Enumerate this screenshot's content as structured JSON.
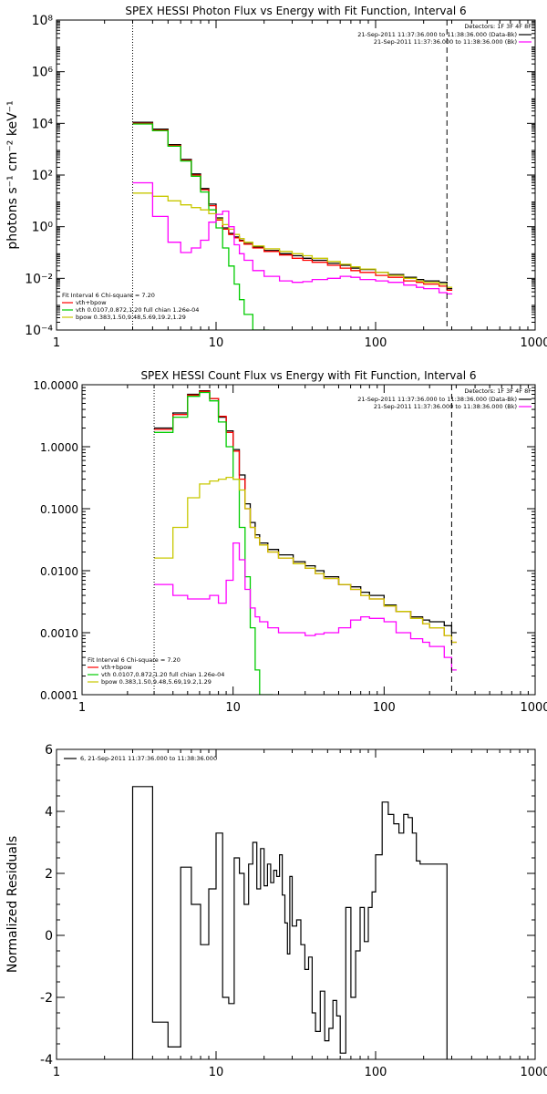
{
  "chart_data": [
    {
      "type": "line",
      "title": "SPEX HESSI Photon Flux vs Energy with Fit Function, Interval 6",
      "ylabel": "photons s⁻¹ cm⁻² keV⁻¹",
      "xlabel": "",
      "xscale": "log",
      "yscale": "log",
      "xlim": [
        1,
        1000
      ],
      "ylim": [
        0.0001,
        100000000
      ],
      "xticks": [
        1,
        10,
        100,
        1000
      ],
      "xtick_labels": [
        "1",
        "10",
        "100",
        "1000"
      ],
      "yticks": [
        0.0001,
        0.01,
        1,
        100,
        10000,
        1000000,
        100000000
      ],
      "ytick_labels": [
        "10⁻⁴",
        "10⁻²",
        "10⁰",
        "10²",
        "10⁴",
        "10⁶",
        "10⁸"
      ],
      "vlines": [
        {
          "x": 3,
          "style": "dotted"
        },
        {
          "x": 280,
          "style": "dashed"
        }
      ],
      "info_lines": [
        "Detectors: 1F 3F 4F 8F",
        "21-Sep-2011 11:37:36.000 to 11:38:36.000 (Data-Bk)",
        "21-Sep-2011 11:37:36.000 to 11:38:36.000 (Bk)"
      ],
      "info_legend_colors": [
        "#000000",
        "#ff00ff"
      ],
      "fit_legend": [
        "Fit Interval 6   Chi-square = 7.20",
        "vth+bpow",
        "vth 0.0107,0.872,1.20  full chian 1.26e-04",
        "bpow 0.383,1.50,9.48,5.69,19.2,1.29"
      ],
      "fit_legend_colors": [
        "#ff0000",
        "#00cc00",
        "#c8c800"
      ],
      "series": [
        {
          "color": "#000000",
          "x": [
            3,
            4,
            5,
            6,
            7,
            8,
            9,
            10,
            11,
            12,
            13,
            14,
            15,
            17,
            20,
            25,
            30,
            35,
            40,
            50,
            60,
            70,
            80,
            100,
            120,
            150,
            180,
            200,
            250,
            280
          ],
          "values": [
            11000,
            6000,
            1500,
            400,
            110,
            30,
            7.5,
            2.2,
            0.9,
            0.55,
            0.4,
            0.3,
            0.22,
            0.16,
            0.12,
            0.09,
            0.075,
            0.06,
            0.05,
            0.038,
            0.032,
            0.025,
            0.022,
            0.017,
            0.014,
            0.011,
            0.009,
            0.008,
            0.007,
            0.004
          ]
        },
        {
          "color": "#ff0000",
          "x": [
            3,
            4,
            5,
            6,
            7,
            8,
            9,
            10,
            11,
            12,
            13,
            14,
            15,
            17,
            20,
            25,
            30,
            35,
            40,
            50,
            60,
            70,
            80,
            100,
            120,
            150,
            180,
            200,
            250,
            280
          ],
          "values": [
            10000,
            5500,
            1400,
            370,
            100,
            27,
            6.5,
            1.8,
            0.8,
            0.5,
            0.37,
            0.28,
            0.21,
            0.15,
            0.11,
            0.08,
            0.06,
            0.05,
            0.042,
            0.032,
            0.025,
            0.02,
            0.017,
            0.013,
            0.011,
            0.008,
            0.007,
            0.006,
            0.005,
            0.0035
          ]
        },
        {
          "color": "#00cc00",
          "x": [
            3,
            4,
            5,
            6,
            7,
            8,
            9,
            10,
            11,
            12,
            13,
            14,
            15,
            17,
            20
          ],
          "values": [
            9500,
            5200,
            1300,
            350,
            90,
            22,
            4.5,
            0.9,
            0.15,
            0.03,
            0.006,
            0.0015,
            0.0004,
            0.0001,
            0.0001
          ]
        },
        {
          "color": "#c8c800",
          "x": [
            3,
            4,
            5,
            6,
            7,
            8,
            9,
            10,
            11,
            12,
            13,
            14,
            15,
            17,
            20,
            25,
            30,
            35,
            40,
            50,
            60,
            70,
            80,
            100,
            120,
            150,
            180,
            200,
            250,
            280
          ],
          "values": [
            20,
            15,
            10,
            7,
            5.5,
            4.5,
            3.2,
            2,
            1.2,
            0.8,
            0.5,
            0.35,
            0.25,
            0.18,
            0.14,
            0.11,
            0.09,
            0.075,
            0.06,
            0.045,
            0.035,
            0.028,
            0.023,
            0.017,
            0.013,
            0.01,
            0.008,
            0.007,
            0.006,
            0.0045
          ]
        },
        {
          "color": "#ff00ff",
          "x": [
            3,
            4,
            5,
            6,
            7,
            8,
            9,
            10,
            11,
            12,
            13,
            14,
            15,
            17,
            20,
            25,
            30,
            35,
            40,
            50,
            60,
            70,
            80,
            100,
            120,
            150,
            180,
            200,
            250,
            280
          ],
          "values": [
            50,
            2.5,
            0.25,
            0.1,
            0.15,
            0.3,
            1.5,
            3,
            4,
            1,
            0.2,
            0.09,
            0.05,
            0.02,
            0.012,
            0.008,
            0.007,
            0.0075,
            0.009,
            0.01,
            0.012,
            0.011,
            0.009,
            0.008,
            0.007,
            0.0055,
            0.0045,
            0.004,
            0.0028,
            0.0025
          ]
        }
      ]
    },
    {
      "type": "line",
      "title": "SPEX HESSI Count Flux vs Energy with Fit Function, Interval 6",
      "ylabel": "",
      "xlabel": "",
      "xscale": "log",
      "yscale": "log",
      "xlim": [
        1,
        1000
      ],
      "ylim": [
        0.0001,
        10
      ],
      "xticks": [
        1,
        10,
        100,
        1000
      ],
      "xtick_labels": [
        "1",
        "10",
        "100",
        "1000"
      ],
      "yticks": [
        0.0001,
        0.001,
        0.01,
        0.1,
        1,
        10
      ],
      "ytick_labels": [
        "0.0001",
        "0.0010",
        "0.0100",
        "0.1000",
        "1.0000",
        "10.0000"
      ],
      "vlines": [
        {
          "x": 3,
          "style": "dotted"
        },
        {
          "x": 280,
          "style": "dashed"
        }
      ],
      "info_lines": [
        "Detectors: 1F 3F 4F 8F",
        "21-Sep-2011 11:37:36.000 to 11:38:36.000 (Data-Bk)",
        "21-Sep-2011 11:37:36.000 to 11:38:36.000 (Bk)"
      ],
      "info_legend_colors": [
        "#000000",
        "#ff00ff"
      ],
      "fit_legend": [
        "Fit Interval 6   Chi-square = 7.20",
        "vth+bpow",
        "vth 0.0107,0.872,1.20  full chian 1.26e-04",
        "bpow 0.383,1.50,9.48,5.69,19.2,1.29"
      ],
      "fit_legend_colors": [
        "#ff0000",
        "#00cc00",
        "#c8c800"
      ],
      "series": [
        {
          "color": "#000000",
          "x": [
            3,
            4,
            5,
            6,
            7,
            8,
            9,
            10,
            11,
            12,
            13,
            14,
            15,
            17,
            20,
            25,
            30,
            35,
            40,
            50,
            60,
            70,
            80,
            100,
            120,
            150,
            180,
            200,
            250,
            280
          ],
          "values": [
            2,
            3.5,
            7,
            8,
            6,
            3,
            1.8,
            0.9,
            0.35,
            0.12,
            0.06,
            0.038,
            0.028,
            0.022,
            0.018,
            0.014,
            0.012,
            0.01,
            0.008,
            0.006,
            0.0055,
            0.0045,
            0.004,
            0.0028,
            0.0022,
            0.0018,
            0.0016,
            0.0015,
            0.0013,
            0.001
          ]
        },
        {
          "color": "#ff0000",
          "x": [
            3,
            4,
            5,
            6,
            7,
            8,
            9,
            10,
            11,
            12,
            13,
            14,
            15,
            17,
            20,
            25,
            30,
            35,
            40,
            50,
            60,
            70,
            80,
            100,
            120,
            150,
            180,
            200,
            250,
            280
          ],
          "values": [
            1.9,
            3.3,
            6.8,
            7.8,
            6,
            3.1,
            1.7,
            0.85,
            0.3,
            0.1,
            0.05,
            0.034,
            0.026,
            0.02,
            0.016,
            0.013,
            0.011,
            0.009,
            0.0075,
            0.006,
            0.005,
            0.004,
            0.0035,
            0.0027,
            0.0022,
            0.0017,
            0.0014,
            0.0012,
            0.0009,
            0.0007
          ]
        },
        {
          "color": "#00cc00",
          "x": [
            3,
            4,
            5,
            6,
            7,
            8,
            9,
            10,
            11,
            12,
            13,
            14,
            15,
            17
          ],
          "values": [
            1.7,
            3,
            6.5,
            7.5,
            5.5,
            2.5,
            1,
            0.3,
            0.05,
            0.008,
            0.0012,
            0.00025,
            0.0001,
            0.0001
          ]
        },
        {
          "color": "#c8c800",
          "x": [
            3,
            4,
            5,
            6,
            7,
            8,
            9,
            10,
            11,
            12,
            13,
            14,
            15,
            17,
            20,
            25,
            30,
            35,
            40,
            50,
            60,
            70,
            80,
            100,
            120,
            150,
            180,
            200,
            250,
            280
          ],
          "values": [
            0.016,
            0.05,
            0.15,
            0.25,
            0.28,
            0.3,
            0.32,
            0.3,
            0.2,
            0.1,
            0.05,
            0.034,
            0.026,
            0.02,
            0.016,
            0.013,
            0.011,
            0.009,
            0.0075,
            0.006,
            0.005,
            0.004,
            0.0035,
            0.0027,
            0.0022,
            0.0017,
            0.0014,
            0.0012,
            0.0009,
            0.0007
          ]
        },
        {
          "color": "#ff00ff",
          "x": [
            3,
            4,
            5,
            6,
            7,
            8,
            9,
            10,
            11,
            12,
            13,
            14,
            15,
            17,
            20,
            25,
            30,
            35,
            40,
            50,
            60,
            70,
            80,
            100,
            120,
            150,
            180,
            200,
            250,
            280
          ],
          "values": [
            0.006,
            0.004,
            0.0035,
            0.0035,
            0.004,
            0.003,
            0.007,
            0.028,
            0.015,
            0.005,
            0.0025,
            0.0018,
            0.0015,
            0.0012,
            0.001,
            0.001,
            0.0009,
            0.00095,
            0.001,
            0.0012,
            0.0016,
            0.0018,
            0.0017,
            0.0015,
            0.001,
            0.0008,
            0.0007,
            0.0006,
            0.0004,
            0.00025
          ]
        }
      ]
    },
    {
      "type": "line",
      "title": "",
      "ylabel": "Normalized Residuals",
      "xlabel": "",
      "xscale": "log",
      "yscale": "linear",
      "xlim": [
        1,
        1000
      ],
      "ylim": [
        -4,
        6
      ],
      "xticks": [
        1,
        10,
        100,
        1000
      ],
      "xtick_labels": [
        "1",
        "10",
        "100",
        "1000"
      ],
      "yticks": [
        -4,
        -2,
        0,
        2,
        4,
        6
      ],
      "ytick_labels": [
        "-4",
        "-2",
        "0",
        "2",
        "4",
        "6"
      ],
      "legend": "6, 21-Sep-2011 11:37:36.000 to 11:38:36.000",
      "edges": [
        3,
        4,
        5,
        6,
        7,
        8,
        9,
        10,
        11,
        12,
        13,
        14,
        15,
        16,
        17,
        18,
        19,
        20,
        21,
        22,
        23,
        24,
        25,
        26,
        27,
        28,
        29,
        30,
        32,
        34,
        36,
        38,
        40,
        42,
        45,
        48,
        51,
        54,
        57,
        60,
        65,
        70,
        75,
        80,
        85,
        90,
        95,
        100,
        110,
        120,
        130,
        140,
        150,
        160,
        170,
        180,
        190,
        200,
        210,
        220,
        230,
        240,
        250,
        260,
        270,
        280
      ],
      "values": [
        4.8,
        -2.8,
        -3.6,
        2.2,
        1,
        -0.3,
        1.5,
        3.3,
        -2,
        -2.2,
        2.5,
        2,
        1,
        2.3,
        3,
        1.5,
        2.8,
        1.6,
        2.3,
        1.7,
        2.1,
        1.9,
        2.6,
        1.3,
        0.4,
        -0.6,
        1.9,
        0.3,
        0.5,
        -0.3,
        -1.1,
        -0.7,
        -2.5,
        -3.1,
        -1.8,
        -3.4,
        -3,
        -2.1,
        -2.6,
        -3.8,
        0.9,
        -2,
        -0.5,
        0.9,
        -0.2,
        0.9,
        1.4,
        2.6,
        4.3,
        3.9,
        3.6,
        3.3,
        3.9,
        3.8,
        3.3,
        2.4,
        2.3,
        2.3,
        2.3,
        2.3,
        2.3,
        2.3,
        2.3,
        2.3,
        2.3
      ]
    }
  ]
}
